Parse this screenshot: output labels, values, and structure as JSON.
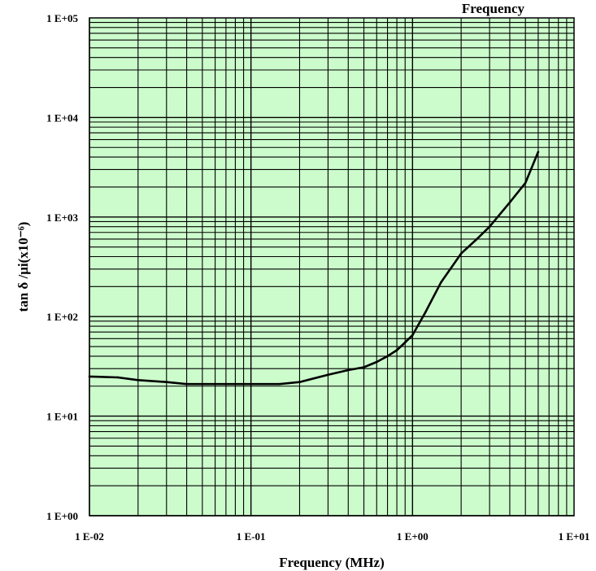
{
  "chart_data": {
    "type": "line",
    "title": "Frequency",
    "xlabel": "Frequency (MHz)",
    "ylabel": "tan δ /μi(x10⁻⁶)",
    "x_scale": "log",
    "y_scale": "log",
    "xlim": [
      0.01,
      10
    ],
    "ylim": [
      1,
      100000
    ],
    "x_ticks": [
      {
        "value": 0.01,
        "label": "1 E-02"
      },
      {
        "value": 0.1,
        "label": "1 E-01"
      },
      {
        "value": 1,
        "label": "1 E+00"
      },
      {
        "value": 10,
        "label": "1 E+01"
      }
    ],
    "y_ticks": [
      {
        "value": 1,
        "label": "1 E+00"
      },
      {
        "value": 10,
        "label": "1 E+01"
      },
      {
        "value": 100,
        "label": "1 E+02"
      },
      {
        "value": 1000,
        "label": "1 E+03"
      },
      {
        "value": 10000,
        "label": "1 E+04"
      },
      {
        "value": 100000,
        "label": "1 E+05"
      }
    ],
    "grid": true,
    "colors": {
      "plot_background": "#ccfccc",
      "grid": "#000000",
      "line": "#000000"
    },
    "series": [
      {
        "x": [
          0.01,
          0.015,
          0.02,
          0.03,
          0.04,
          0.06,
          0.08,
          0.1,
          0.15,
          0.2,
          0.3,
          0.4,
          0.5,
          0.6,
          0.7,
          0.8,
          0.9,
          1.0,
          1.2,
          1.5,
          2.0,
          2.5,
          3.0,
          4.0,
          5.0,
          6.0
        ],
        "y": [
          25,
          24.5,
          23,
          22,
          21,
          21,
          21,
          21,
          21,
          22,
          26,
          29,
          31,
          35,
          40,
          46,
          55,
          65,
          110,
          220,
          430,
          600,
          800,
          1400,
          2200,
          4500
        ]
      }
    ]
  }
}
